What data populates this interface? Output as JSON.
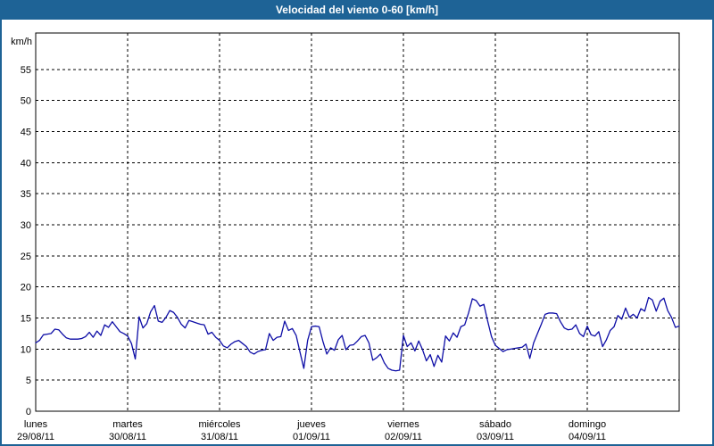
{
  "window": {
    "title": "Velocidad del viento 0-60 [km/h]"
  },
  "colors": {
    "header_bg": "#1E6396",
    "frame_border": "#1E6396",
    "plot_border": "#000000",
    "grid": "#000000",
    "line": "#0D0DA6",
    "title_text": "#FFFFFF",
    "tick_text": "#000000",
    "background": "#FFFFFF"
  },
  "chart_data": {
    "type": "line",
    "title": "Velocidad del viento 0-60 [km/h]",
    "ylabel": "km/h",
    "xlabel": "",
    "ylim": [
      0,
      60
    ],
    "grid": true,
    "grid_style": "dashed",
    "legend": "none",
    "y_ticks": [
      0,
      5,
      10,
      15,
      20,
      25,
      30,
      35,
      40,
      45,
      50,
      55
    ],
    "x_days": [
      {
        "name": "lunes",
        "date": "29/08/11"
      },
      {
        "name": "martes",
        "date": "30/08/11"
      },
      {
        "name": "miércoles",
        "date": "31/08/11"
      },
      {
        "name": "jueves",
        "date": "01/09/11"
      },
      {
        "name": "viernes",
        "date": "02/09/11"
      },
      {
        "name": "sábado",
        "date": "03/09/11"
      },
      {
        "name": "domingo",
        "date": "04/09/11"
      }
    ],
    "points_per_day": 24,
    "series": [
      {
        "name": "Velocidad del viento [km/h]",
        "values": [
          11.0,
          11.4,
          12.3,
          12.4,
          12.5,
          13.2,
          13.1,
          12.4,
          11.8,
          11.6,
          11.6,
          11.6,
          11.7,
          12.0,
          12.7,
          11.9,
          12.9,
          12.2,
          13.9,
          13.5,
          14.4,
          13.6,
          12.8,
          12.5,
          12.1,
          10.9,
          8.4,
          15.2,
          13.4,
          14.1,
          16.0,
          17.0,
          14.5,
          14.3,
          15.1,
          16.2,
          15.9,
          15.1,
          14.0,
          13.4,
          14.6,
          14.4,
          14.2,
          14.0,
          13.9,
          12.4,
          12.7,
          11.9,
          11.4,
          10.5,
          10.2,
          10.8,
          11.2,
          11.4,
          10.9,
          10.4,
          9.5,
          9.2,
          9.6,
          9.8,
          9.9,
          12.5,
          11.4,
          11.9,
          12.0,
          14.5,
          13.0,
          13.3,
          12.2,
          9.5,
          6.9,
          11.4,
          13.6,
          13.7,
          13.6,
          11.2,
          9.2,
          10.2,
          9.8,
          11.5,
          12.2,
          9.9,
          10.6,
          10.7,
          11.3,
          12.0,
          12.2,
          11.0,
          8.2,
          8.6,
          9.2,
          7.8,
          6.9,
          6.6,
          6.5,
          6.6,
          12.2,
          10.4,
          11.0,
          9.7,
          11.3,
          9.9,
          8.1,
          9.1,
          7.2,
          9.0,
          7.9,
          12.1,
          11.3,
          12.6,
          11.9,
          13.6,
          13.9,
          15.8,
          18.1,
          17.8,
          16.9,
          17.2,
          14.5,
          12.0,
          10.6,
          10.1,
          9.6,
          9.9,
          10.0,
          10.1,
          10.2,
          10.3,
          10.8,
          8.5,
          11.0,
          12.5,
          14.0,
          15.6,
          15.8,
          15.8,
          15.7,
          14.4,
          13.4,
          13.1,
          13.2,
          13.9,
          12.5,
          12.0,
          13.7,
          12.3,
          12.1,
          12.8,
          10.4,
          11.5,
          13.0,
          13.6,
          15.4,
          14.8,
          16.6,
          15.1,
          15.6,
          15.0,
          16.5,
          16.1,
          18.3,
          17.9,
          16.1,
          17.7,
          18.2,
          16.2,
          15.1,
          13.5,
          13.7
        ]
      }
    ]
  }
}
